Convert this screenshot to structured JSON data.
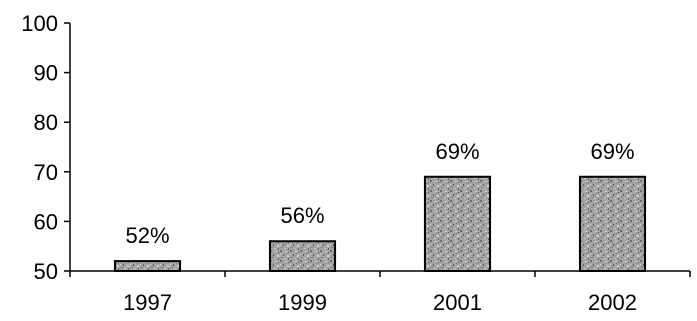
{
  "chart_data": {
    "type": "bar",
    "categories": [
      "1997",
      "1999",
      "2001",
      "2002"
    ],
    "values": [
      52,
      56,
      69,
      69
    ],
    "data_labels": [
      "52%",
      "56%",
      "69%",
      "69%"
    ],
    "ylim": [
      50,
      100
    ],
    "yticks": [
      "50",
      "60",
      "70",
      "80",
      "90",
      "100"
    ],
    "title": "",
    "xlabel": "",
    "ylabel": "",
    "grid": false,
    "bar_fill": "#9a9a9a",
    "bar_texture": "speckled-gray"
  }
}
